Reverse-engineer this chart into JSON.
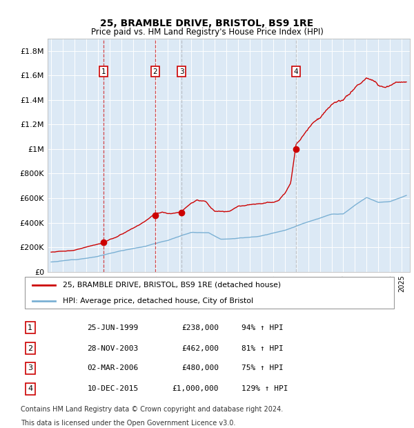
{
  "title": "25, BRAMBLE DRIVE, BRISTOL, BS9 1RE",
  "subtitle": "Price paid vs. HM Land Registry's House Price Index (HPI)",
  "plot_bg": "#dce9f5",
  "ylabel_ticks": [
    "£0",
    "£200K",
    "£400K",
    "£600K",
    "£800K",
    "£1M",
    "£1.2M",
    "£1.4M",
    "£1.6M",
    "£1.8M"
  ],
  "ytick_values": [
    0,
    200000,
    400000,
    600000,
    800000,
    1000000,
    1200000,
    1400000,
    1600000,
    1800000
  ],
  "ylim": [
    0,
    1900000
  ],
  "purchases": [
    {
      "num": 1,
      "date": "25-JUN-1999",
      "price": 238000,
      "year": 1999.48,
      "pct": "94%",
      "dir": "↑",
      "vline_style": "dashed_red"
    },
    {
      "num": 2,
      "date": "28-NOV-2003",
      "price": 462000,
      "year": 2003.91,
      "pct": "81%",
      "dir": "↑",
      "vline_style": "dashed_red"
    },
    {
      "num": 3,
      "date": "02-MAR-2006",
      "price": 480000,
      "year": 2006.17,
      "pct": "75%",
      "dir": "↑",
      "vline_style": "dashed_gray"
    },
    {
      "num": 4,
      "date": "10-DEC-2015",
      "price": 1000000,
      "year": 2015.94,
      "pct": "129%",
      "dir": "↑",
      "vline_style": "dashed_gray"
    }
  ],
  "legend_line1": "25, BRAMBLE DRIVE, BRISTOL, BS9 1RE (detached house)",
  "legend_line2": "HPI: Average price, detached house, City of Bristol",
  "footer1": "Contains HM Land Registry data © Crown copyright and database right 2024.",
  "footer2": "This data is licensed under the Open Government Licence v3.0.",
  "line_color_red": "#cc0000",
  "line_color_blue": "#7ab0d4",
  "vline_color_red": "#cc0000",
  "vline_color_gray": "#aaaaaa"
}
